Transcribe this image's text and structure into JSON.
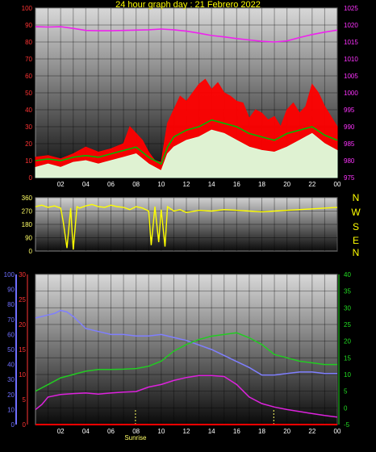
{
  "title": "24 hour graph day : 21 Febrero 2022",
  "colors": {
    "temp_red": "#ff0000",
    "temp_green": "#00bb00",
    "wind_white": "#ddffdd",
    "pressure_magenta": "#ee22ee",
    "direction_yellow": "#ffff00",
    "humidity_blue": "#7f7fff",
    "dew_magenta": "#dd22dd",
    "temp_line_green": "#22cc22",
    "tick_red": "#ff3333",
    "tick_blue": "#6f6fff",
    "tick_green": "#22dd22",
    "tick_yellow": "#ffff66",
    "tick_magenta": "#ff33ff",
    "hour_white": "#ffffff",
    "event_yellow": "#ffff66"
  },
  "compass": [
    "N",
    "W",
    "S",
    "E",
    "N"
  ],
  "chart_data": [
    {
      "type": "line",
      "panel": "wind-pressure",
      "x_ticks": [
        "02",
        "04",
        "06",
        "08",
        "10",
        "12",
        "14",
        "16",
        "18",
        "20",
        "22",
        "00"
      ],
      "left_ticks": [
        "100",
        "90",
        "80",
        "70",
        "60",
        "50",
        "40",
        "30",
        "20",
        "10",
        "0"
      ],
      "right_ticks": [
        "1025",
        "1020",
        "1015",
        "1010",
        "1005",
        "1000",
        "995",
        "990",
        "985",
        "980",
        "975"
      ],
      "ylim_left": [
        0,
        100
      ],
      "ylim_right": [
        975,
        1025
      ],
      "xlim_hours": [
        0,
        24
      ],
      "series": [
        {
          "key": "gust",
          "color": "temp_red",
          "style": "area-jagged",
          "x": [
            0,
            1,
            2,
            3,
            4,
            5,
            6,
            7,
            7.5,
            8,
            8.5,
            9,
            9.5,
            10,
            10.5,
            11,
            11.5,
            12,
            12.5,
            13,
            13.5,
            14,
            14.5,
            15,
            15.5,
            16,
            16.5,
            17,
            17.5,
            18,
            18.5,
            19,
            19.5,
            20,
            20.5,
            21,
            21.5,
            22,
            22.5,
            23,
            23.5,
            24
          ],
          "y": [
            12,
            13,
            11,
            14,
            18,
            15,
            17,
            20,
            30,
            26,
            22,
            15,
            10,
            9,
            32,
            40,
            48,
            45,
            50,
            55,
            58,
            52,
            56,
            50,
            48,
            45,
            44,
            35,
            40,
            38,
            34,
            36,
            30,
            40,
            44,
            38,
            42,
            55,
            50,
            42,
            36,
            30
          ]
        },
        {
          "key": "average",
          "color": "temp_green",
          "style": "line",
          "x": [
            0,
            1,
            2,
            3,
            4,
            5,
            6,
            7,
            8,
            9,
            10,
            10.5,
            11,
            12,
            13,
            14,
            15,
            16,
            17,
            18,
            19,
            20,
            21,
            22,
            23,
            24
          ],
          "y": [
            10,
            11,
            10,
            12,
            13,
            12,
            14,
            16,
            18,
            12,
            8,
            18,
            24,
            28,
            30,
            34,
            32,
            30,
            26,
            24,
            22,
            26,
            28,
            30,
            25,
            22
          ]
        },
        {
          "key": "wind",
          "color": "wind_white",
          "style": "area-jagged",
          "x": [
            0,
            1,
            2,
            3,
            4,
            5,
            6,
            7,
            8,
            9,
            10,
            10.5,
            11,
            12,
            13,
            14,
            15,
            16,
            17,
            18,
            19,
            20,
            21,
            22,
            23,
            24
          ],
          "y": [
            6,
            8,
            6,
            9,
            10,
            8,
            10,
            12,
            14,
            8,
            4,
            14,
            18,
            22,
            24,
            28,
            26,
            22,
            18,
            16,
            15,
            18,
            22,
            26,
            20,
            16
          ]
        },
        {
          "key": "pressure",
          "color": "pressure_magenta",
          "style": "line",
          "axis": "right",
          "x": [
            0,
            1,
            2,
            3,
            4,
            5,
            6,
            7,
            8,
            9,
            10,
            11,
            12,
            13,
            14,
            15,
            16,
            17,
            18,
            19,
            20,
            21,
            22,
            23,
            24
          ],
          "y": [
            1019.5,
            1019.4,
            1019.5,
            1019,
            1018.4,
            1018.3,
            1018.3,
            1018.4,
            1018.5,
            1018.6,
            1018.8,
            1018.6,
            1018.2,
            1017.6,
            1016.9,
            1016.5,
            1016.0,
            1015.6,
            1015.2,
            1015.0,
            1015.3,
            1016.3,
            1017.2,
            1017.9,
            1018.5
          ]
        }
      ]
    },
    {
      "type": "line",
      "panel": "wind-direction",
      "left_ticks": [
        "360",
        "270",
        "180",
        "90",
        "0"
      ],
      "ylim": [
        0,
        360
      ],
      "xlim_hours": [
        0,
        24
      ],
      "series": [
        {
          "key": "direction",
          "color": "direction_yellow",
          "style": "line",
          "x": [
            0,
            0.5,
            1,
            1.5,
            2,
            2.2,
            2.5,
            2.8,
            3,
            3.3,
            3.5,
            4,
            4.5,
            5,
            5.5,
            6,
            6.5,
            7,
            7.5,
            8,
            8.5,
            9,
            9.2,
            9.5,
            9.8,
            10,
            10.3,
            10.5,
            11,
            11.5,
            12,
            13,
            14,
            15,
            16,
            17,
            18,
            19,
            20,
            21,
            22,
            23,
            24
          ],
          "y": [
            300,
            310,
            295,
            305,
            290,
            200,
            20,
            290,
            10,
            300,
            290,
            305,
            315,
            300,
            295,
            310,
            300,
            295,
            280,
            300,
            290,
            270,
            40,
            300,
            60,
            280,
            30,
            300,
            270,
            280,
            260,
            275,
            270,
            280,
            275,
            270,
            265,
            270,
            275,
            280,
            285,
            290,
            295
          ]
        }
      ]
    },
    {
      "type": "line",
      "panel": "temperature-humidity",
      "x_ticks": [
        "02",
        "04",
        "06",
        "08",
        "10",
        "12",
        "14",
        "16",
        "18",
        "20",
        "22",
        "00"
      ],
      "outer_left_ticks": [
        "100",
        "90",
        "80",
        "70",
        "60",
        "50",
        "40",
        "30",
        "20",
        "10",
        "0"
      ],
      "inner_left_ticks": [
        "30",
        "25",
        "20",
        "15",
        "10",
        "5",
        "0"
      ],
      "right_ticks": [
        "40",
        "35",
        "30",
        "25",
        "20",
        "15",
        "10",
        "5",
        "0",
        "-5"
      ],
      "ylim_outer_left": [
        0,
        100
      ],
      "ylim_inner_left": [
        0,
        30
      ],
      "ylim_right": [
        -5,
        40
      ],
      "xlim_hours": [
        0,
        24
      ],
      "events": [
        {
          "label": "Sunrise",
          "hour": 7.95
        },
        {
          "label": "",
          "hour": 18.95
        }
      ],
      "series": [
        {
          "key": "humidity",
          "color": "humidity_blue",
          "style": "line",
          "axis": "outer_left",
          "x": [
            0,
            0.5,
            1,
            1.5,
            2,
            2.5,
            3,
            3.5,
            4,
            5,
            6,
            7,
            8,
            9,
            10,
            11,
            12,
            13,
            14,
            15,
            16,
            17,
            18,
            19,
            20,
            21,
            22,
            23,
            24
          ],
          "y": [
            71,
            72,
            73,
            74,
            76,
            75,
            72,
            68,
            64,
            62,
            60,
            60,
            59,
            59,
            60,
            58,
            56,
            53,
            50,
            46,
            42,
            38,
            33,
            33,
            34,
            35,
            35,
            34,
            34
          ]
        },
        {
          "key": "temperature",
          "color": "temp_line_green",
          "style": "line",
          "axis": "right",
          "x": [
            0,
            0.5,
            1,
            2,
            3,
            4,
            5,
            6,
            7,
            8,
            9,
            10,
            11,
            12,
            13,
            14,
            15,
            16,
            17,
            18,
            19,
            20,
            21,
            22,
            23,
            24
          ],
          "y": [
            5,
            6,
            7,
            9,
            10,
            11,
            11.5,
            11.5,
            11.6,
            11.8,
            12.5,
            14,
            17,
            19,
            20.5,
            21.5,
            22,
            22.5,
            21,
            19,
            16,
            15,
            14,
            13.5,
            13,
            13
          ]
        },
        {
          "key": "dewpoint",
          "color": "dew_magenta",
          "style": "line",
          "axis": "inner_left",
          "x": [
            0,
            0.5,
            1,
            2,
            3,
            4,
            5,
            6,
            7,
            8,
            9,
            10,
            11,
            12,
            13,
            14,
            15,
            16,
            17,
            18,
            19,
            20,
            21,
            22,
            23,
            24
          ],
          "y": [
            3,
            4,
            5.5,
            6,
            6.2,
            6.3,
            6.1,
            6.3,
            6.5,
            6.6,
            7.5,
            8,
            8.8,
            9.4,
            9.8,
            9.8,
            9.6,
            8,
            5.5,
            4.2,
            3.5,
            3,
            2.6,
            2.2,
            1.8,
            1.5
          ]
        },
        {
          "key": "rain",
          "color": "temp_red",
          "style": "line",
          "axis": "inner_left",
          "x": [
            0,
            24
          ],
          "y": [
            0,
            0
          ]
        }
      ]
    }
  ]
}
